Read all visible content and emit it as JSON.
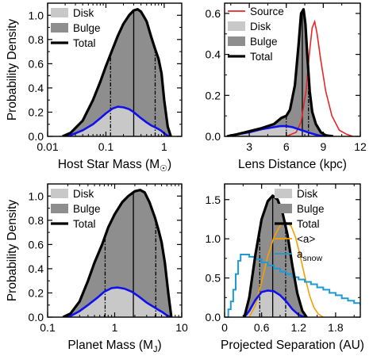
{
  "colors": {
    "disk": "#c8c8c8",
    "bulge": "#8e8e8e",
    "total": "#000000",
    "disk_curve": "#1010ee",
    "source": "#e8262a",
    "a_mean": "#f5a000",
    "a_snow": "#1e9ad2"
  },
  "chart_data": [
    {
      "type": "area",
      "id": "host-star-mass",
      "xlabel": "Host Star Mass (M",
      "xlabel_sub": "☉",
      "xlabel_end": ")",
      "ylabel": "Probability Density",
      "xscale": "log",
      "xlim": [
        0.01,
        2.0
      ],
      "ylim": [
        0,
        1.1
      ],
      "xticks": [
        0.01,
        0.1,
        1
      ],
      "xtick_labels": [
        "0.01",
        "0.1",
        "1"
      ],
      "yticks": [
        0,
        0.2,
        0.4,
        0.6,
        0.8,
        1.0
      ],
      "ytick_labels": [
        "0.0",
        "0.2",
        "0.4",
        "0.6",
        "0.8",
        "1.0"
      ],
      "legend": [
        {
          "label": "Disk",
          "kind": "fill-disk"
        },
        {
          "label": "Bulge",
          "kind": "fill-bulge"
        },
        {
          "label": "Total",
          "kind": "line-total"
        }
      ],
      "total": {
        "x": [
          0.018,
          0.025,
          0.04,
          0.06,
          0.08,
          0.1,
          0.13,
          0.16,
          0.2,
          0.25,
          0.3,
          0.35,
          0.4,
          0.5,
          0.6,
          0.7,
          0.8,
          0.9,
          1.0,
          1.15,
          1.3
        ],
        "y": [
          0.0,
          0.03,
          0.13,
          0.3,
          0.45,
          0.58,
          0.72,
          0.83,
          0.93,
          1.0,
          1.04,
          1.05,
          1.03,
          0.95,
          0.82,
          0.72,
          0.64,
          0.52,
          0.3,
          0.08,
          0.0
        ]
      },
      "disk": {
        "x": [
          0.018,
          0.025,
          0.04,
          0.06,
          0.08,
          0.1,
          0.13,
          0.16,
          0.2,
          0.25,
          0.3,
          0.4,
          0.5,
          0.6,
          0.7,
          0.8,
          0.9,
          1.0,
          1.15,
          1.3
        ],
        "y": [
          0.0,
          0.01,
          0.05,
          0.1,
          0.15,
          0.19,
          0.23,
          0.245,
          0.24,
          0.225,
          0.2,
          0.15,
          0.115,
          0.09,
          0.075,
          0.06,
          0.045,
          0.025,
          0.005,
          0.0
        ]
      },
      "median": 0.3,
      "ci_low": 0.12,
      "ci_high": 0.7
    },
    {
      "type": "area",
      "id": "lens-distance",
      "xlabel": "Lens Distance (kpc)",
      "xscale": "linear",
      "xlim": [
        1,
        12
      ],
      "ylim": [
        0,
        0.65
      ],
      "xticks": [
        3,
        6,
        9,
        12
      ],
      "xtick_labels": [
        "3",
        "6",
        "9",
        "12"
      ],
      "yticks": [
        0,
        0.2,
        0.4,
        0.6
      ],
      "ytick_labels": [
        "0.0",
        "0.2",
        "0.4",
        "0.6"
      ],
      "legend": [
        {
          "label": "Source",
          "kind": "line-source"
        },
        {
          "label": "Disk",
          "kind": "fill-disk"
        },
        {
          "label": "Bulge",
          "kind": "fill-bulge"
        },
        {
          "label": "Total",
          "kind": "line-total"
        }
      ],
      "total": {
        "x": [
          1.2,
          2,
          3,
          4,
          5,
          5.6,
          6.0,
          6.3,
          6.7,
          7.0,
          7.2,
          7.4,
          7.55,
          7.7,
          7.9,
          8.1,
          8.4,
          8.8,
          9.2,
          9.8
        ],
        "y": [
          0.0,
          0.01,
          0.025,
          0.04,
          0.06,
          0.09,
          0.1,
          0.13,
          0.25,
          0.45,
          0.6,
          0.62,
          0.55,
          0.4,
          0.22,
          0.12,
          0.06,
          0.02,
          0.005,
          0.0
        ]
      },
      "disk": {
        "x": [
          1.2,
          2,
          3,
          4,
          5,
          5.5,
          6,
          6.5,
          7,
          7.5,
          8,
          8.6,
          9.2
        ],
        "y": [
          0.0,
          0.01,
          0.02,
          0.035,
          0.045,
          0.05,
          0.05,
          0.045,
          0.035,
          0.025,
          0.015,
          0.005,
          0.0
        ]
      },
      "source": {
        "x": [
          6.0,
          6.8,
          7.2,
          7.6,
          7.9,
          8.1,
          8.3,
          8.5,
          8.8,
          9.2,
          9.7,
          10.3,
          10.9,
          11.4
        ],
        "y": [
          0.0,
          0.02,
          0.07,
          0.22,
          0.42,
          0.53,
          0.56,
          0.5,
          0.37,
          0.22,
          0.1,
          0.03,
          0.01,
          0.0
        ]
      },
      "median": 7.3,
      "ci_low": 6.0,
      "ci_high": 7.8
    },
    {
      "type": "area",
      "id": "planet-mass",
      "xlabel": "Planet Mass (M",
      "xlabel_sub": "J",
      "xlabel_end": ")",
      "ylabel": "Probability Density",
      "xscale": "log",
      "xlim": [
        0.1,
        10
      ],
      "ylim": [
        0,
        1.1
      ],
      "xticks": [
        0.1,
        1,
        10
      ],
      "xtick_labels": [
        "0.1",
        "1",
        "10"
      ],
      "yticks": [
        0,
        0.2,
        0.4,
        0.6,
        0.8,
        1.0
      ],
      "ytick_labels": [
        "0.0",
        "0.2",
        "0.4",
        "0.6",
        "0.8",
        "1.0"
      ],
      "legend": [
        {
          "label": "Disk",
          "kind": "fill-disk"
        },
        {
          "label": "Bulge",
          "kind": "fill-bulge"
        },
        {
          "label": "Total",
          "kind": "line-total"
        }
      ],
      "total": {
        "x": [
          0.17,
          0.22,
          0.3,
          0.4,
          0.5,
          0.65,
          0.8,
          1.0,
          1.3,
          1.6,
          2.0,
          2.4,
          2.8,
          3.3,
          4.0,
          4.5,
          5.0,
          5.6,
          6.3,
          7.0
        ],
        "y": [
          0.0,
          0.03,
          0.13,
          0.3,
          0.45,
          0.6,
          0.74,
          0.85,
          0.95,
          1.0,
          1.04,
          1.05,
          1.03,
          0.95,
          0.82,
          0.72,
          0.62,
          0.45,
          0.2,
          0.0
        ]
      },
      "disk": {
        "x": [
          0.17,
          0.22,
          0.3,
          0.4,
          0.55,
          0.7,
          0.9,
          1.1,
          1.4,
          1.8,
          2.3,
          3.0,
          3.8,
          4.5,
          5.2,
          6.0,
          7.0
        ],
        "y": [
          0.0,
          0.01,
          0.05,
          0.1,
          0.16,
          0.21,
          0.24,
          0.245,
          0.235,
          0.21,
          0.17,
          0.12,
          0.085,
          0.06,
          0.04,
          0.015,
          0.0
        ]
      },
      "median": 1.9,
      "ci_low": 0.72,
      "ci_high": 4.1
    },
    {
      "type": "area",
      "id": "projected-separation",
      "xlabel": "Projected Separation (AU)",
      "xscale": "linear",
      "xlim": [
        0,
        2.2
      ],
      "ylim": [
        0,
        1.7
      ],
      "xticks": [
        0,
        0.6,
        1.2,
        1.8
      ],
      "xtick_labels": [
        "0",
        "0.6",
        "1.2",
        "1.8"
      ],
      "yticks": [
        0,
        0.5,
        1.0,
        1.5
      ],
      "ytick_labels": [
        "0.0",
        "0.5",
        "1.0",
        "1.5"
      ],
      "legend": [
        {
          "label": "Disk",
          "kind": "fill-disk"
        },
        {
          "label": "Bulge",
          "kind": "fill-bulge"
        },
        {
          "label": "Total",
          "kind": "line-total"
        },
        {
          "label": "<a>",
          "kind": "line-amean"
        },
        {
          "label": "a",
          "sub": "snow",
          "kind": "line-asnow"
        }
      ],
      "total": {
        "x": [
          0.32,
          0.4,
          0.5,
          0.6,
          0.7,
          0.78,
          0.86,
          0.94,
          1.02,
          1.1,
          1.18,
          1.26,
          1.33
        ],
        "y": [
          0.0,
          0.25,
          0.8,
          1.25,
          1.48,
          1.55,
          1.5,
          1.33,
          1.05,
          0.65,
          0.3,
          0.08,
          0.0
        ]
      },
      "disk": {
        "x": [
          0.32,
          0.4,
          0.5,
          0.6,
          0.7,
          0.8,
          0.9,
          1.0,
          1.1,
          1.2,
          1.3
        ],
        "y": [
          0.0,
          0.08,
          0.22,
          0.32,
          0.34,
          0.33,
          0.28,
          0.2,
          0.1,
          0.03,
          0.0
        ]
      },
      "a_mean": {
        "x": [
          0.4,
          0.5,
          0.6,
          0.7,
          0.8,
          0.9,
          1.0,
          1.08,
          1.15,
          1.22,
          1.3,
          1.38,
          1.45,
          1.52,
          1.6
        ],
        "y": [
          0.0,
          0.15,
          0.45,
          0.78,
          1.02,
          1.17,
          1.21,
          1.16,
          1.02,
          0.8,
          0.52,
          0.27,
          0.12,
          0.04,
          0.0
        ]
      },
      "a_snow": {
        "x": [
          0.06,
          0.1,
          0.14,
          0.18,
          0.22,
          0.26,
          0.3,
          0.4,
          0.5,
          0.6,
          0.7,
          0.8,
          0.9,
          1.0,
          1.1,
          1.2,
          1.3,
          1.4,
          1.5,
          1.6,
          1.7,
          1.8,
          1.9,
          2.0,
          2.1,
          2.2
        ],
        "y": [
          0.1,
          0.2,
          0.35,
          0.55,
          0.72,
          0.8,
          0.8,
          0.77,
          0.74,
          0.7,
          0.66,
          0.62,
          0.58,
          0.55,
          0.51,
          0.48,
          0.45,
          0.42,
          0.38,
          0.35,
          0.31,
          0.28,
          0.24,
          0.21,
          0.18,
          0.15
        ]
      },
      "median": 0.78,
      "ci_low": 0.57,
      "ci_high": 0.99
    }
  ]
}
